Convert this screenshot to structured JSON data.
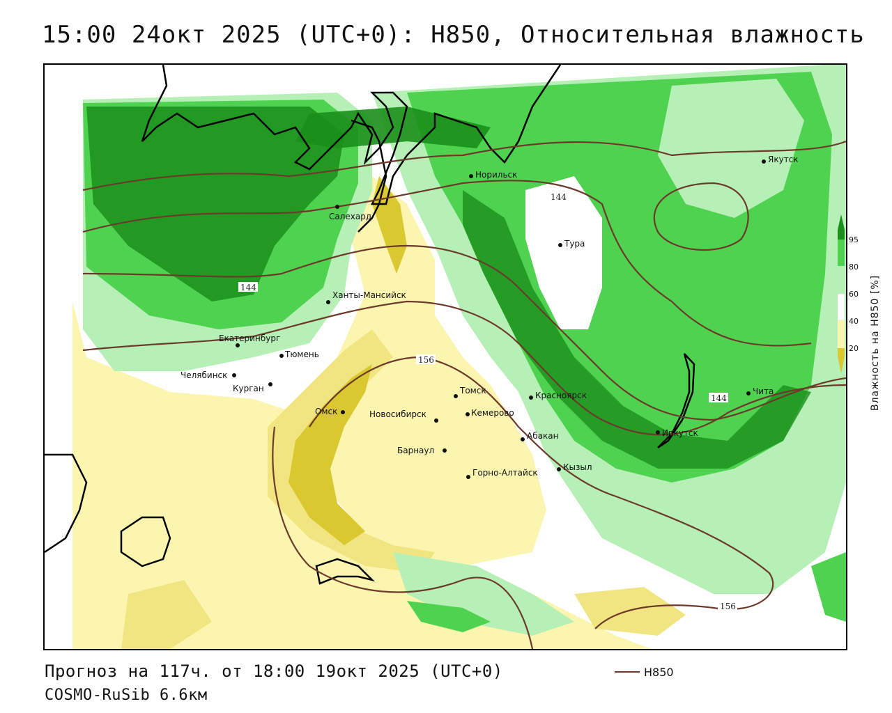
{
  "header": {
    "title": "15:00 24окт 2025 (UTC+0): H850, Относительная влажность"
  },
  "map": {
    "cities": [
      {
        "name": "Якутск"
      },
      {
        "name": "Норильск"
      },
      {
        "name": "Салехард"
      },
      {
        "name": "Тура"
      },
      {
        "name": "Ханты-Мансийск"
      },
      {
        "name": "Екатеринбург"
      },
      {
        "name": "Тюмень"
      },
      {
        "name": "Челябинск"
      },
      {
        "name": "Курган"
      },
      {
        "name": "Омск"
      },
      {
        "name": "Новосибирск"
      },
      {
        "name": "Томск"
      },
      {
        "name": "Кемерово"
      },
      {
        "name": "Красноярск"
      },
      {
        "name": "Абакан"
      },
      {
        "name": "Барнаул"
      },
      {
        "name": "Горно-Алтайск"
      },
      {
        "name": "Кызыл"
      },
      {
        "name": "Иркутск"
      },
      {
        "name": "Чита"
      }
    ],
    "contour_labels": [
      "144",
      "144",
      "144",
      "156",
      "156"
    ],
    "colors": {
      "dark_green": "#1a8f1a",
      "mid_green": "#4fd24f",
      "light_green": "#b6f0b6",
      "light_yellow": "#fbf5b0",
      "mid_yellow": "#f0e580",
      "dark_yellow": "#d9c830",
      "contour": "#6b3a2a",
      "coast": "#000000"
    }
  },
  "legend": {
    "title": "Влажность на H850 [%]",
    "ticks": [
      "95",
      "80",
      "60",
      "40",
      "20"
    ],
    "line_label": "H850"
  },
  "footer": {
    "forecast": "Прогноз на 117ч. от 18:00 19окт 2025 (UTC+0)",
    "model": "COSMO-RuSib 6.6км"
  }
}
